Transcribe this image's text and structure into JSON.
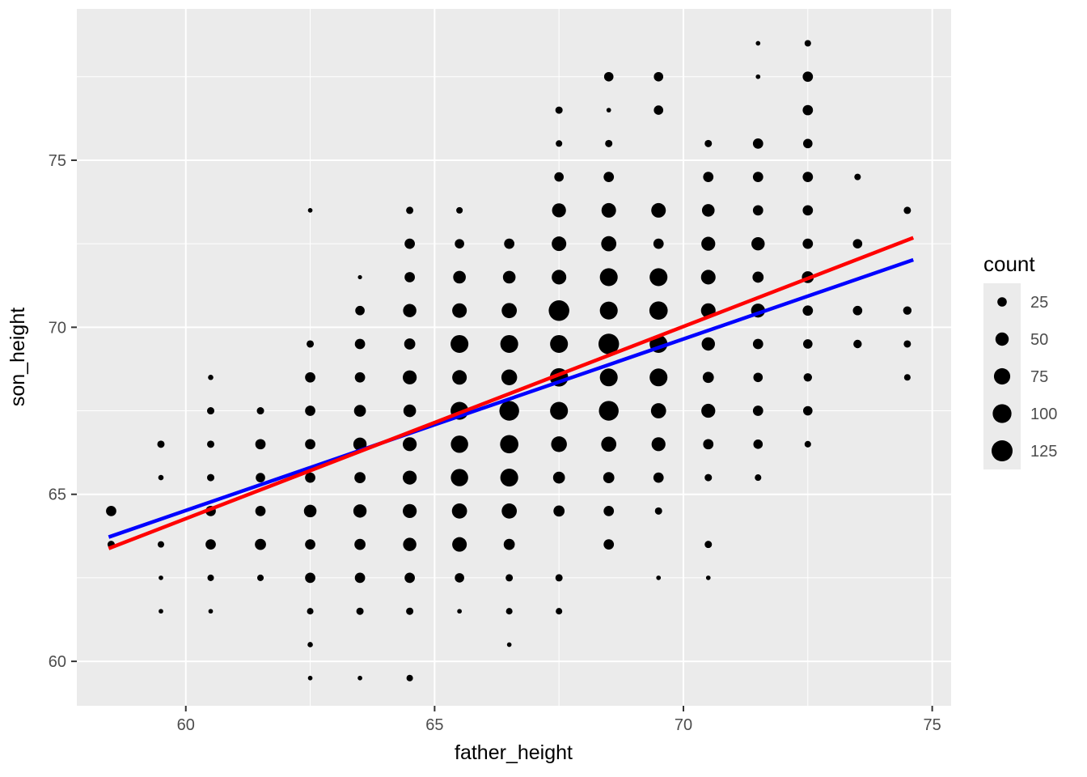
{
  "chart_data": {
    "type": "scatter",
    "title": "",
    "xlabel": "father_height",
    "ylabel": "son_height",
    "xlim": [
      57.81,
      75.38
    ],
    "ylim": [
      58.67,
      79.53
    ],
    "x_ticks": [
      60,
      65,
      70,
      75
    ],
    "y_ticks": [
      60,
      65,
      70,
      75
    ],
    "x_minor_ticks": [
      62.5,
      67.5,
      72.5
    ],
    "y_minor_ticks": [
      62.5,
      67.5,
      72.5,
      77.5
    ],
    "grid": true,
    "panel_bg": "#EBEBEB",
    "grid_color": "#FFFFFF",
    "point_color": "#000000",
    "axis_text_color": "#4D4D4D",
    "axis_title_color": "#000000",
    "tick_mark_color": "#333333",
    "legend_position": "right",
    "size_legend": {
      "title": "count",
      "values": [
        25,
        50,
        75,
        100,
        125
      ],
      "key_bg": "#EBEBEB",
      "label_color": "#4D4D4D"
    },
    "lines": [
      {
        "name": "blue-fit-line",
        "color": "#0000FF",
        "x1": 58.45,
        "y1": 63.72,
        "x2": 74.62,
        "y2": 72.02,
        "width": 4.5
      },
      {
        "name": "red-fit-line",
        "color": "#FF0000",
        "x1": 58.45,
        "y1": 63.38,
        "x2": 74.62,
        "y2": 72.68,
        "width": 4.5
      }
    ],
    "points": [
      [
        58.5,
        64.5,
        30
      ],
      [
        58.5,
        63.5,
        15
      ],
      [
        59.5,
        66.5,
        15
      ],
      [
        59.5,
        65.5,
        8
      ],
      [
        59.5,
        63.5,
        12
      ],
      [
        59.5,
        62.5,
        6
      ],
      [
        59.5,
        61.5,
        6
      ],
      [
        60.5,
        68.5,
        8
      ],
      [
        60.5,
        67.5,
        15
      ],
      [
        60.5,
        66.5,
        15
      ],
      [
        60.5,
        65.5,
        15
      ],
      [
        60.5,
        64.5,
        30
      ],
      [
        60.5,
        63.5,
        30
      ],
      [
        60.5,
        62.5,
        12
      ],
      [
        60.5,
        61.5,
        6
      ],
      [
        61.5,
        67.5,
        15
      ],
      [
        61.5,
        66.5,
        30
      ],
      [
        61.5,
        65.5,
        25
      ],
      [
        61.5,
        64.5,
        30
      ],
      [
        61.5,
        63.5,
        35
      ],
      [
        61.5,
        62.5,
        12
      ],
      [
        62.5,
        73.5,
        6
      ],
      [
        62.5,
        69.5,
        15
      ],
      [
        62.5,
        68.5,
        30
      ],
      [
        62.5,
        67.5,
        30
      ],
      [
        62.5,
        66.5,
        30
      ],
      [
        62.5,
        65.5,
        30
      ],
      [
        62.5,
        64.5,
        45
      ],
      [
        62.5,
        63.5,
        30
      ],
      [
        62.5,
        62.5,
        30
      ],
      [
        62.5,
        61.5,
        12
      ],
      [
        62.5,
        60.5,
        8
      ],
      [
        62.5,
        59.5,
        6
      ],
      [
        63.5,
        71.5,
        5
      ],
      [
        63.5,
        70.5,
        25
      ],
      [
        63.5,
        69.5,
        30
      ],
      [
        63.5,
        68.5,
        30
      ],
      [
        63.5,
        67.5,
        40
      ],
      [
        63.5,
        66.5,
        50
      ],
      [
        63.5,
        65.5,
        35
      ],
      [
        63.5,
        64.5,
        50
      ],
      [
        63.5,
        63.5,
        35
      ],
      [
        63.5,
        62.5,
        30
      ],
      [
        63.5,
        61.5,
        15
      ],
      [
        63.5,
        59.5,
        6
      ],
      [
        64.5,
        73.5,
        15
      ],
      [
        64.5,
        72.5,
        30
      ],
      [
        64.5,
        71.5,
        30
      ],
      [
        64.5,
        70.5,
        50
      ],
      [
        64.5,
        69.5,
        35
      ],
      [
        64.5,
        68.5,
        55
      ],
      [
        64.5,
        67.5,
        45
      ],
      [
        64.5,
        66.5,
        55
      ],
      [
        64.5,
        65.5,
        55
      ],
      [
        64.5,
        64.5,
        55
      ],
      [
        64.5,
        63.5,
        50
      ],
      [
        64.5,
        62.5,
        30
      ],
      [
        64.5,
        61.5,
        15
      ],
      [
        64.5,
        59.5,
        12
      ],
      [
        65.5,
        73.5,
        12
      ],
      [
        65.5,
        72.5,
        25
      ],
      [
        65.5,
        71.5,
        45
      ],
      [
        65.5,
        70.5,
        60
      ],
      [
        65.5,
        69.5,
        90
      ],
      [
        65.5,
        68.5,
        60
      ],
      [
        65.5,
        67.5,
        90
      ],
      [
        65.5,
        66.5,
        85
      ],
      [
        65.5,
        65.5,
        85
      ],
      [
        65.5,
        64.5,
        65
      ],
      [
        65.5,
        63.5,
        60
      ],
      [
        65.5,
        62.5,
        25
      ],
      [
        65.5,
        61.5,
        6
      ],
      [
        66.5,
        72.5,
        30
      ],
      [
        66.5,
        71.5,
        45
      ],
      [
        66.5,
        70.5,
        65
      ],
      [
        66.5,
        69.5,
        90
      ],
      [
        66.5,
        68.5,
        70
      ],
      [
        66.5,
        67.5,
        110
      ],
      [
        66.5,
        66.5,
        95
      ],
      [
        66.5,
        65.5,
        90
      ],
      [
        66.5,
        64.5,
        65
      ],
      [
        66.5,
        63.5,
        35
      ],
      [
        66.5,
        62.5,
        15
      ],
      [
        66.5,
        61.5,
        12
      ],
      [
        66.5,
        60.5,
        6
      ],
      [
        67.5,
        76.5,
        15
      ],
      [
        67.5,
        75.5,
        12
      ],
      [
        67.5,
        74.5,
        25
      ],
      [
        67.5,
        73.5,
        55
      ],
      [
        67.5,
        72.5,
        60
      ],
      [
        67.5,
        71.5,
        60
      ],
      [
        67.5,
        70.5,
        120
      ],
      [
        67.5,
        69.5,
        90
      ],
      [
        67.5,
        68.5,
        95
      ],
      [
        67.5,
        67.5,
        90
      ],
      [
        67.5,
        66.5,
        70
      ],
      [
        67.5,
        65.5,
        40
      ],
      [
        67.5,
        64.5,
        35
      ],
      [
        67.5,
        62.5,
        15
      ],
      [
        67.5,
        61.5,
        12
      ],
      [
        68.5,
        77.5,
        25
      ],
      [
        68.5,
        76.5,
        6
      ],
      [
        68.5,
        75.5,
        15
      ],
      [
        68.5,
        74.5,
        30
      ],
      [
        68.5,
        73.5,
        60
      ],
      [
        68.5,
        72.5,
        65
      ],
      [
        68.5,
        71.5,
        90
      ],
      [
        68.5,
        70.5,
        90
      ],
      [
        68.5,
        69.5,
        120
      ],
      [
        68.5,
        68.5,
        90
      ],
      [
        68.5,
        67.5,
        110
      ],
      [
        68.5,
        66.5,
        65
      ],
      [
        68.5,
        65.5,
        35
      ],
      [
        68.5,
        64.5,
        30
      ],
      [
        68.5,
        63.5,
        30
      ],
      [
        69.5,
        77.5,
        25
      ],
      [
        69.5,
        76.5,
        25
      ],
      [
        69.5,
        73.5,
        60
      ],
      [
        69.5,
        72.5,
        30
      ],
      [
        69.5,
        71.5,
        90
      ],
      [
        69.5,
        70.5,
        95
      ],
      [
        69.5,
        69.5,
        90
      ],
      [
        69.5,
        68.5,
        90
      ],
      [
        69.5,
        67.5,
        65
      ],
      [
        69.5,
        66.5,
        55
      ],
      [
        69.5,
        65.5,
        30
      ],
      [
        69.5,
        64.5,
        15
      ],
      [
        69.5,
        62.5,
        6
      ],
      [
        70.5,
        75.5,
        15
      ],
      [
        70.5,
        74.5,
        30
      ],
      [
        70.5,
        73.5,
        45
      ],
      [
        70.5,
        72.5,
        55
      ],
      [
        70.5,
        71.5,
        60
      ],
      [
        70.5,
        70.5,
        60
      ],
      [
        70.5,
        69.5,
        50
      ],
      [
        70.5,
        68.5,
        35
      ],
      [
        70.5,
        67.5,
        55
      ],
      [
        70.5,
        66.5,
        30
      ],
      [
        70.5,
        65.5,
        15
      ],
      [
        70.5,
        63.5,
        15
      ],
      [
        70.5,
        62.5,
        6
      ],
      [
        71.5,
        78.5,
        6
      ],
      [
        71.5,
        77.5,
        6
      ],
      [
        71.5,
        75.5,
        30
      ],
      [
        71.5,
        74.5,
        30
      ],
      [
        71.5,
        73.5,
        30
      ],
      [
        71.5,
        72.5,
        50
      ],
      [
        71.5,
        71.5,
        35
      ],
      [
        71.5,
        70.5,
        55
      ],
      [
        71.5,
        69.5,
        30
      ],
      [
        71.5,
        68.5,
        25
      ],
      [
        71.5,
        67.5,
        30
      ],
      [
        71.5,
        66.5,
        25
      ],
      [
        71.5,
        65.5,
        12
      ],
      [
        72.5,
        78.5,
        12
      ],
      [
        72.5,
        77.5,
        30
      ],
      [
        72.5,
        76.5,
        30
      ],
      [
        72.5,
        75.5,
        25
      ],
      [
        72.5,
        74.5,
        30
      ],
      [
        72.5,
        73.5,
        30
      ],
      [
        72.5,
        72.5,
        30
      ],
      [
        72.5,
        71.5,
        40
      ],
      [
        72.5,
        70.5,
        30
      ],
      [
        72.5,
        69.5,
        25
      ],
      [
        72.5,
        68.5,
        20
      ],
      [
        72.5,
        67.5,
        25
      ],
      [
        72.5,
        66.5,
        12
      ],
      [
        73.5,
        74.5,
        12
      ],
      [
        73.5,
        72.5,
        25
      ],
      [
        73.5,
        70.5,
        25
      ],
      [
        73.5,
        69.5,
        20
      ],
      [
        74.5,
        73.5,
        15
      ],
      [
        74.5,
        70.5,
        20
      ],
      [
        74.5,
        69.5,
        15
      ],
      [
        74.5,
        68.5,
        12
      ]
    ]
  }
}
